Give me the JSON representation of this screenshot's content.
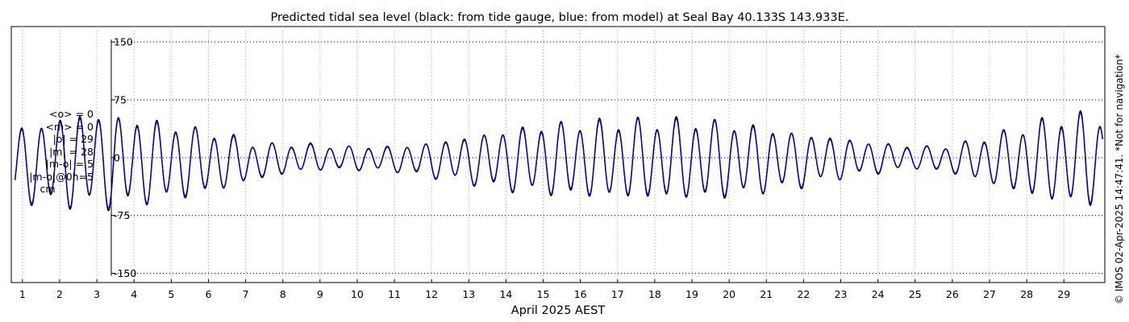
{
  "chart_data": {
    "type": "line",
    "title": "Predicted tidal sea level (black: from tide gauge, blue: from model) at Seal Bay 40.133S 143.933E.",
    "xlabel": "April 2025 AEST",
    "ylabel": "",
    "xlim": [
      0.7,
      30.1
    ],
    "ylim": [
      -162,
      170
    ],
    "y_ticks": [
      -150,
      -75,
      0,
      75,
      150
    ],
    "x_ticks": [
      1,
      2,
      3,
      4,
      5,
      6,
      7,
      8,
      9,
      10,
      11,
      12,
      13,
      14,
      15,
      16,
      17,
      18,
      19,
      20,
      21,
      22,
      23,
      24,
      25,
      26,
      27,
      28,
      29
    ],
    "grid": "dotted",
    "series": [
      {
        "color": "#000000"
      },
      {
        "color": "#0000cc"
      }
    ],
    "envelope": {
      "day": [
        0.8,
        2.5,
        3.6,
        5.0,
        6.3,
        7.3,
        8.5,
        9.5,
        11.0,
        12.6,
        14.0,
        15.5,
        17.5,
        19.4,
        20.6,
        22.0,
        23.5,
        25.0,
        26.0,
        27.2,
        28.3,
        29.6,
        30.0
      ],
      "amplitude": [
        52,
        68,
        66,
        55,
        42,
        26,
        20,
        17,
        18,
        30,
        44,
        53,
        57,
        57,
        50,
        38,
        25,
        16,
        20,
        38,
        56,
        68,
        60
      ],
      "offset": [
        -10,
        -3,
        -5,
        -5,
        -5,
        -5,
        0,
        0,
        -2,
        -3,
        -3,
        -2,
        -2,
        -2,
        -3,
        -3,
        0,
        0,
        -2,
        -3,
        -3,
        -2,
        -2
      ]
    },
    "annotation": "© IMOS 02-Apr-2025 14:47:41. *Not for navigation*"
  },
  "stats": {
    "mean_obs": "<o> = 0",
    "mean_model": "<m> = 0",
    "abs_obs": "|o| = 29",
    "abs_model": "|m| = 28",
    "abs_diff": "|m-o| = 5",
    "abs_diff_0h": "|m-o|@0h=5",
    "unit": "cm"
  }
}
